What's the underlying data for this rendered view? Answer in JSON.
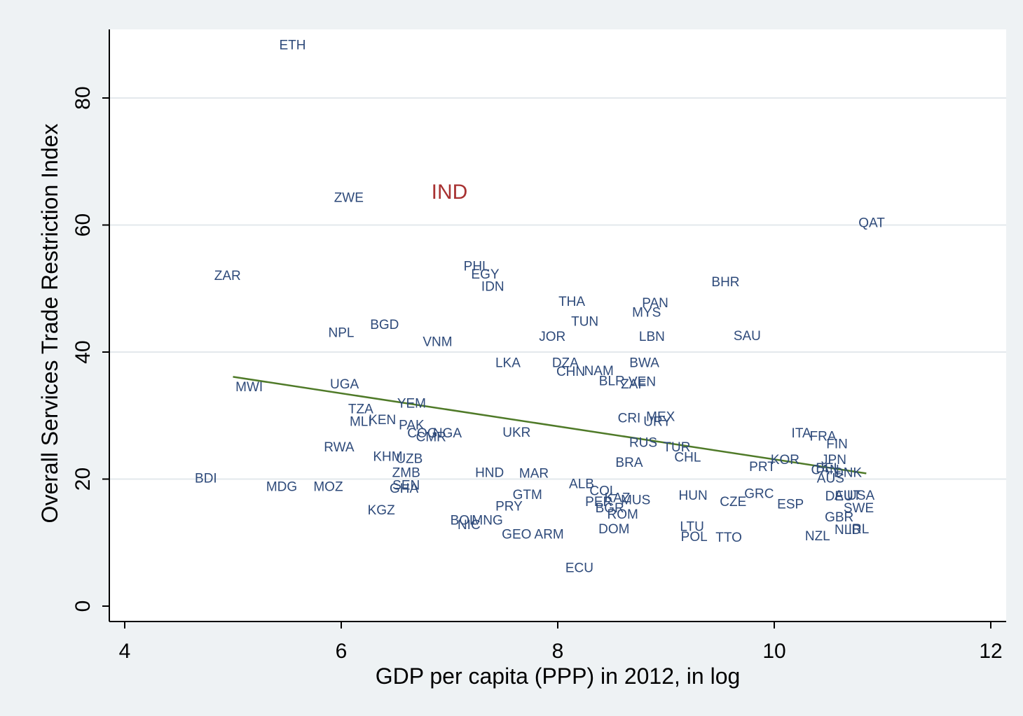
{
  "chart_data": {
    "type": "scatter",
    "xlabel": "GDP per capita (PPP) in 2012, in log",
    "ylabel": "Overall Services Trade Restriction Index",
    "xlim": [
      4,
      12
    ],
    "ylim": [
      0,
      90
    ],
    "x_ticks": [
      4,
      6,
      8,
      10,
      12
    ],
    "y_ticks": [
      0,
      20,
      40,
      60,
      80
    ],
    "grid": "horizontal",
    "colors": {
      "labels": "#2e4a7a",
      "highlight": "#a83232",
      "fit_line": "#4f7a28",
      "plot_bg": "#ffffff",
      "page_bg": "#eef2f4"
    },
    "fit_line": {
      "x": [
        5.0,
        10.85
      ],
      "y": [
        36.1,
        20.9
      ]
    },
    "points": [
      {
        "label": "ETH",
        "x": 5.55,
        "y": 88.2
      },
      {
        "label": "ZWE",
        "x": 6.07,
        "y": 64.2
      },
      {
        "label": "IND",
        "x": 7.0,
        "y": 65.0,
        "highlight": true
      },
      {
        "label": "QAT",
        "x": 10.9,
        "y": 60.2
      },
      {
        "label": "ZAR",
        "x": 4.95,
        "y": 51.9
      },
      {
        "label": "PHL",
        "x": 7.25,
        "y": 53.4
      },
      {
        "label": "EGY",
        "x": 7.33,
        "y": 52.1
      },
      {
        "label": "IDN",
        "x": 7.4,
        "y": 50.2
      },
      {
        "label": "BHR",
        "x": 9.55,
        "y": 50.9
      },
      {
        "label": "THA",
        "x": 8.13,
        "y": 47.8
      },
      {
        "label": "PAN",
        "x": 8.9,
        "y": 47.6
      },
      {
        "label": "MYS",
        "x": 8.82,
        "y": 46.1
      },
      {
        "label": "TUN",
        "x": 8.25,
        "y": 44.7
      },
      {
        "label": "BGD",
        "x": 6.4,
        "y": 44.2
      },
      {
        "label": "NPL",
        "x": 6.0,
        "y": 42.9
      },
      {
        "label": "JOR",
        "x": 7.95,
        "y": 42.3
      },
      {
        "label": "LBN",
        "x": 8.87,
        "y": 42.3
      },
      {
        "label": "SAU",
        "x": 9.75,
        "y": 42.4
      },
      {
        "label": "VNM",
        "x": 6.89,
        "y": 41.5
      },
      {
        "label": "LKA",
        "x": 7.54,
        "y": 38.2
      },
      {
        "label": "DZA",
        "x": 8.07,
        "y": 38.2
      },
      {
        "label": "BWA",
        "x": 8.8,
        "y": 38.2
      },
      {
        "label": "CHN",
        "x": 8.12,
        "y": 36.8
      },
      {
        "label": "NAM",
        "x": 8.38,
        "y": 36.9
      },
      {
        "label": "BLR",
        "x": 8.5,
        "y": 35.3
      },
      {
        "label": "VEN",
        "x": 8.78,
        "y": 35.2
      },
      {
        "label": "ZAF",
        "x": 8.7,
        "y": 34.8
      },
      {
        "label": "MWI",
        "x": 5.15,
        "y": 34.4
      },
      {
        "label": "UGA",
        "x": 6.03,
        "y": 34.8
      },
      {
        "label": "YEM",
        "x": 6.65,
        "y": 31.8
      },
      {
        "label": "TZA",
        "x": 6.18,
        "y": 30.9
      },
      {
        "label": "KEN",
        "x": 6.38,
        "y": 29.2
      },
      {
        "label": "MLI",
        "x": 6.18,
        "y": 28.9
      },
      {
        "label": "PAK",
        "x": 6.65,
        "y": 28.4
      },
      {
        "label": "CRI",
        "x": 8.66,
        "y": 29.5
      },
      {
        "label": "MEX",
        "x": 8.95,
        "y": 29.7
      },
      {
        "label": "URY",
        "x": 8.92,
        "y": 28.9
      },
      {
        "label": "COG",
        "x": 6.75,
        "y": 27.1
      },
      {
        "label": "NGA",
        "x": 6.98,
        "y": 27.1
      },
      {
        "label": "CMR",
        "x": 6.83,
        "y": 26.5
      },
      {
        "label": "UKR",
        "x": 7.62,
        "y": 27.2
      },
      {
        "label": "ITA",
        "x": 10.25,
        "y": 27.1
      },
      {
        "label": "FRA",
        "x": 10.45,
        "y": 26.6
      },
      {
        "label": "FIN",
        "x": 10.58,
        "y": 25.4
      },
      {
        "label": "RUS",
        "x": 8.79,
        "y": 25.6
      },
      {
        "label": "TUR",
        "x": 9.1,
        "y": 24.9
      },
      {
        "label": "RWA",
        "x": 5.98,
        "y": 24.9
      },
      {
        "label": "KHM",
        "x": 6.43,
        "y": 23.4
      },
      {
        "label": "UZB",
        "x": 6.63,
        "y": 23.1
      },
      {
        "label": "CHL",
        "x": 9.2,
        "y": 23.3
      },
      {
        "label": "KOR",
        "x": 10.1,
        "y": 22.9
      },
      {
        "label": "JPN",
        "x": 10.55,
        "y": 22.9
      },
      {
        "label": "BRA",
        "x": 8.66,
        "y": 22.5
      },
      {
        "label": "PRT",
        "x": 9.89,
        "y": 21.8
      },
      {
        "label": "BEL",
        "x": 10.5,
        "y": 21.6
      },
      {
        "label": "CAN",
        "x": 10.47,
        "y": 21.3
      },
      {
        "label": "DNK",
        "x": 10.68,
        "y": 20.9
      },
      {
        "label": "ZMB",
        "x": 6.6,
        "y": 20.9
      },
      {
        "label": "HND",
        "x": 7.37,
        "y": 20.9
      },
      {
        "label": "MAR",
        "x": 7.78,
        "y": 20.8
      },
      {
        "label": "AUS",
        "x": 10.52,
        "y": 20.0
      },
      {
        "label": "BDI",
        "x": 4.75,
        "y": 20.0
      },
      {
        "label": "ALB",
        "x": 8.22,
        "y": 19.1
      },
      {
        "label": "SEN",
        "x": 6.6,
        "y": 18.9
      },
      {
        "label": "MDG",
        "x": 5.45,
        "y": 18.7
      },
      {
        "label": "MOZ",
        "x": 5.88,
        "y": 18.7
      },
      {
        "label": "GHA",
        "x": 6.58,
        "y": 18.4
      },
      {
        "label": "COL",
        "x": 8.42,
        "y": 18.0
      },
      {
        "label": "GRC",
        "x": 9.86,
        "y": 17.6
      },
      {
        "label": "GTM",
        "x": 7.72,
        "y": 17.4
      },
      {
        "label": "HUN",
        "x": 9.25,
        "y": 17.3
      },
      {
        "label": "DEU",
        "x": 10.6,
        "y": 17.2
      },
      {
        "label": "AUT",
        "x": 10.68,
        "y": 17.3
      },
      {
        "label": "USA",
        "x": 10.8,
        "y": 17.3
      },
      {
        "label": "KAZ",
        "x": 8.55,
        "y": 16.9
      },
      {
        "label": "MUS",
        "x": 8.72,
        "y": 16.6
      },
      {
        "label": "PER",
        "x": 8.38,
        "y": 16.3
      },
      {
        "label": "CZE",
        "x": 9.62,
        "y": 16.3
      },
      {
        "label": "ESP",
        "x": 10.15,
        "y": 15.9
      },
      {
        "label": "PRY",
        "x": 7.55,
        "y": 15.6
      },
      {
        "label": "SWE",
        "x": 10.78,
        "y": 15.3
      },
      {
        "label": "BGR",
        "x": 8.48,
        "y": 15.3
      },
      {
        "label": "KGZ",
        "x": 6.37,
        "y": 15.0
      },
      {
        "label": "ROM",
        "x": 8.6,
        "y": 14.3
      },
      {
        "label": "GBR",
        "x": 10.6,
        "y": 13.9
      },
      {
        "label": "BOL",
        "x": 7.13,
        "y": 13.4
      },
      {
        "label": "MNG",
        "x": 7.35,
        "y": 13.4
      },
      {
        "label": "NIC",
        "x": 7.18,
        "y": 12.7
      },
      {
        "label": "LTU",
        "x": 9.24,
        "y": 12.4
      },
      {
        "label": "NLD",
        "x": 10.68,
        "y": 11.9
      },
      {
        "label": "IRL",
        "x": 10.78,
        "y": 12.0
      },
      {
        "label": "DOM",
        "x": 8.52,
        "y": 12.0
      },
      {
        "label": "GEO",
        "x": 7.62,
        "y": 11.2
      },
      {
        "label": "ARM",
        "x": 7.92,
        "y": 11.2
      },
      {
        "label": "POL",
        "x": 9.26,
        "y": 10.8
      },
      {
        "label": "TTO",
        "x": 9.58,
        "y": 10.7
      },
      {
        "label": "NZL",
        "x": 10.4,
        "y": 10.9
      },
      {
        "label": "ECU",
        "x": 8.2,
        "y": 5.9
      }
    ]
  }
}
